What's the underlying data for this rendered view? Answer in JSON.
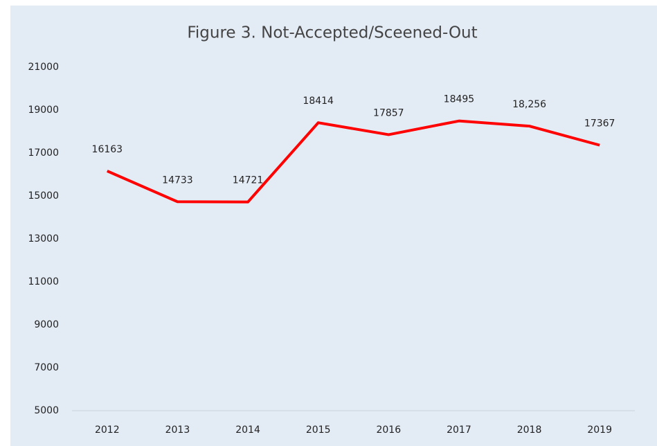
{
  "chart_data": {
    "type": "line",
    "title": "Figure 3. Not-Accepted/Sceened-Out",
    "categories": [
      "2012",
      "2013",
      "2014",
      "2015",
      "2016",
      "2017",
      "2018",
      "2019"
    ],
    "series": [
      {
        "color": "#ff0000",
        "values": [
          16163,
          14733,
          14721,
          18414,
          17857,
          18495,
          18256,
          17367
        ],
        "value_labels": [
          "16163",
          "14733",
          "14721",
          "18414",
          "17857",
          "18495",
          "18,256",
          "17367"
        ]
      }
    ],
    "ylim": [
      5000,
      21000
    ],
    "yticks": [
      5000,
      7000,
      9000,
      11000,
      13000,
      15000,
      17000,
      19000,
      21000
    ],
    "grid": false
  }
}
